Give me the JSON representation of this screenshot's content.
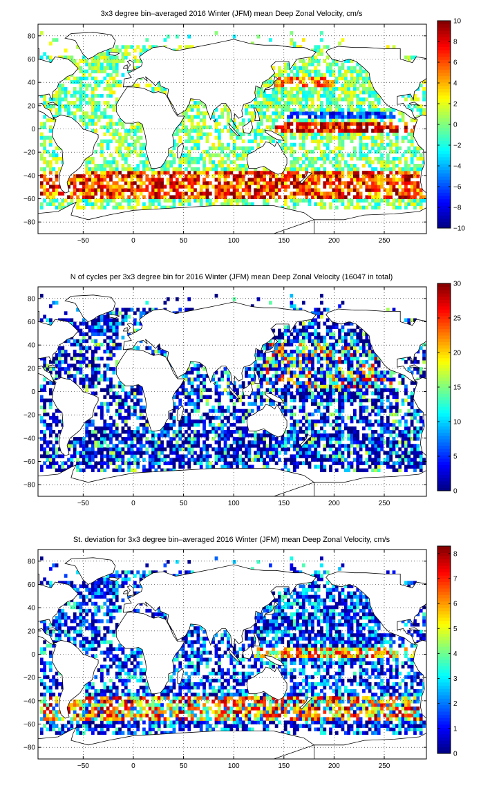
{
  "chart_data": [
    {
      "type": "heatmap",
      "title": "3x3 degree bin–averaged 2016 Winter (JFM) mean Deep Zonal Velocity, cm/s",
      "xlabel": "",
      "ylabel": "",
      "xlim": [
        -95,
        292
      ],
      "ylim": [
        -90,
        90
      ],
      "xticks": [
        -50,
        0,
        50,
        100,
        150,
        200,
        250
      ],
      "xtick_labels": [
        "−50",
        "0",
        "50",
        "100",
        "150",
        "200",
        "250"
      ],
      "yticks": [
        80,
        60,
        40,
        20,
        0,
        -20,
        -40,
        -60,
        -80
      ],
      "ytick_labels": [
        "80",
        "60",
        "40",
        "20",
        "0",
        "−20",
        "−40",
        "−60",
        "−80"
      ],
      "grid": true,
      "colormap": "jet",
      "clim": [
        -10,
        10
      ],
      "colorbar_ticks": [
        10,
        8,
        6,
        4,
        2,
        0,
        -2,
        -4,
        -6,
        -8,
        -10
      ],
      "colorbar_tick_labels": [
        "10",
        "8",
        "6",
        "4",
        "2",
        "0",
        "−2",
        "−4",
        "−6",
        "−8",
        "−10"
      ],
      "bin_deg": 3,
      "field": "zonal_velocity"
    },
    {
      "type": "heatmap",
      "title": "N of cycles per 3x3 degree bin for 2016 Winter (JFM) mean Deep Zonal Velocity (16047 in total)",
      "xlabel": "",
      "ylabel": "",
      "xlim": [
        -95,
        292
      ],
      "ylim": [
        -90,
        90
      ],
      "xticks": [
        -50,
        0,
        50,
        100,
        150,
        200,
        250
      ],
      "xtick_labels": [
        "−50",
        "0",
        "50",
        "100",
        "150",
        "200",
        "250"
      ],
      "yticks": [
        80,
        60,
        40,
        20,
        0,
        -20,
        -40,
        -60,
        -80
      ],
      "ytick_labels": [
        "80",
        "60",
        "40",
        "20",
        "0",
        "−20",
        "−40",
        "−60",
        "−80"
      ],
      "grid": true,
      "colormap": "jet",
      "clim": [
        0,
        30
      ],
      "colorbar_ticks": [
        30,
        25,
        20,
        15,
        10,
        5,
        0
      ],
      "colorbar_tick_labels": [
        "30",
        "25",
        "20",
        "15",
        "10",
        "5",
        "0"
      ],
      "bin_deg": 3,
      "total_cycles": 16047,
      "field": "count"
    },
    {
      "type": "heatmap",
      "title": "St. deviation for 3x3 degree bin–averaged 2016 Winter (JFM) mean Deep Zonal Velocity, cm/s",
      "xlabel": "",
      "ylabel": "",
      "xlim": [
        -95,
        292
      ],
      "ylim": [
        -90,
        90
      ],
      "xticks": [
        -50,
        0,
        50,
        100,
        150,
        200,
        250
      ],
      "xtick_labels": [
        "−50",
        "0",
        "50",
        "100",
        "150",
        "200",
        "250"
      ],
      "yticks": [
        80,
        60,
        40,
        20,
        0,
        -20,
        -40,
        -60,
        -80
      ],
      "ytick_labels": [
        "80",
        "60",
        "40",
        "20",
        "0",
        "−20",
        "−40",
        "−60",
        "−80"
      ],
      "grid": true,
      "colormap": "jet",
      "clim": [
        0,
        8.3
      ],
      "colorbar_ticks": [
        8,
        7,
        6,
        5,
        4,
        3,
        2,
        1,
        0
      ],
      "colorbar_tick_labels": [
        "8",
        "7",
        "6",
        "5",
        "4",
        "3",
        "2",
        "1",
        "0"
      ],
      "bin_deg": 3,
      "field": "std"
    }
  ]
}
